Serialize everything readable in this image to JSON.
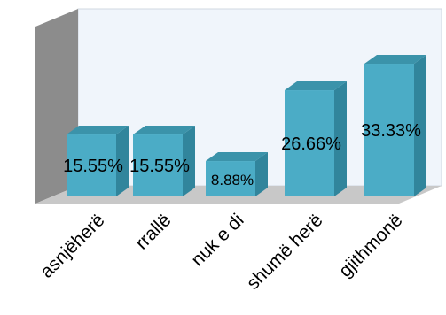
{
  "chart_data": {
    "type": "bar",
    "style": "3d",
    "categories": [
      "asnjëherë",
      "rrallë",
      "nuk e di",
      "shumë herë",
      "gjithmonë"
    ],
    "values": [
      15.55,
      15.55,
      8.88,
      26.66,
      33.33
    ],
    "data_labels": [
      "15.55%",
      "15.55%",
      "8.88%",
      "26.66%",
      "33.33%"
    ],
    "ylim": [
      0,
      40
    ],
    "grid": false,
    "legend": "none",
    "colors": {
      "bar_front": "#4bacc6",
      "bar_side": "#31859c",
      "bar_top": "#3b93aa",
      "back_wall": "#f0f5fb",
      "side_wall": "#8c8c8c",
      "floor": "#c8c8c8"
    }
  }
}
